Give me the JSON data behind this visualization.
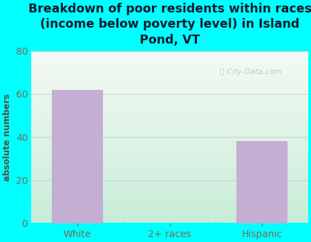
{
  "title": "Breakdown of poor residents within races\n(income below poverty level) in Island\nPond, VT",
  "categories": [
    "White",
    "2+ races",
    "Hispanic"
  ],
  "values": [
    62,
    0,
    38
  ],
  "bar_color": "#c4aed4",
  "ylabel": "absolute numbers",
  "ylim": [
    0,
    80
  ],
  "yticks": [
    0,
    20,
    40,
    60,
    80
  ],
  "background_color": "#00ffff",
  "plot_bg_top": "#f5faf5",
  "plot_bg_bottom": "#c8ecd8",
  "title_color": "#1a1a2e",
  "tick_color": "#7a6a5a",
  "ylabel_color": "#5a4a3a",
  "watermark": "City-Data.com",
  "title_fontsize": 12.5,
  "tick_fontsize": 10,
  "ylabel_fontsize": 9
}
